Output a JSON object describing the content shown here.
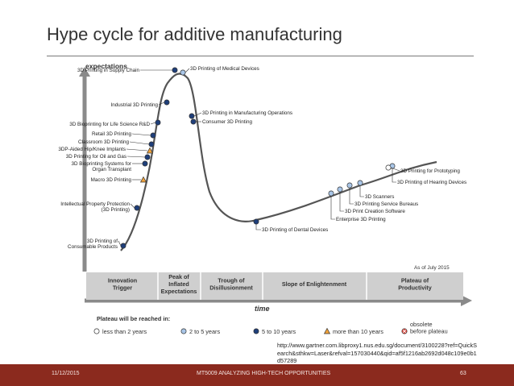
{
  "slide": {
    "title": "Hype cycle for additive manufacturing",
    "source_url": "http://www.gartner.com.libproxy1.nus.edu.sg/document/3100228?ref=QuickSearch&sthkw=Laser&refval=157030440&qid=af5f1216ab2692d048c109e0b1d57289",
    "footer_date": "11/12/2015",
    "footer_course": "MT5009 ANALYZING HIGH-TECH OPPORTUNITIES",
    "page_number": "63",
    "colors": {
      "accent": "#8b2a1e",
      "curve": "#555555",
      "phase_band": "#cfcfcf"
    }
  },
  "hype_cycle": {
    "y_axis_label": "expectations",
    "x_axis_label": "time",
    "as_of": "As of July 2015",
    "phases": [
      {
        "label_lines": [
          "Innovation",
          "Trigger"
        ]
      },
      {
        "label_lines": [
          "Peak of",
          "Inflated",
          "Expectations"
        ]
      },
      {
        "label_lines": [
          "Trough of",
          "Disillusionment"
        ]
      },
      {
        "label_lines": [
          "Slope of Enlightenment"
        ]
      },
      {
        "label_lines": [
          "Plateau of",
          "Productivity"
        ]
      }
    ],
    "technologies": [
      {
        "name": "3D Printing of Medical Devices",
        "plateau": "2-5"
      },
      {
        "name": "3D Printing in Supply Chain",
        "plateau": "5-10"
      },
      {
        "name": "Industrial 3D Printing",
        "plateau": "5-10"
      },
      {
        "name": "3D Bioprinting for Life Science R&D",
        "plateau": "5-10"
      },
      {
        "name": "Retail 3D Printing",
        "plateau": "5-10"
      },
      {
        "name": "Classroom 3D Printing",
        "plateau": "5-10"
      },
      {
        "name": "3DP-Aided Hip/Knee Implants",
        "plateau": ">10"
      },
      {
        "name": "3D Printing for Oil and Gas",
        "plateau": "5-10"
      },
      {
        "name": "3D Bioprinting Systems for Organ Transplant",
        "label_lines": [
          "3D Bioprinting Systems for",
          "Organ Transplant"
        ],
        "plateau": "5-10"
      },
      {
        "name": "Macro 3D Printing",
        "plateau": ">10"
      },
      {
        "name": "Intellectual Property Protection (3D Printing)",
        "label_lines": [
          "Intellectual Property Protection",
          "(3D Printing)"
        ],
        "plateau": "5-10"
      },
      {
        "name": "3D Printing of Consumable Products",
        "label_lines": [
          "3D Printing of",
          "Consumable Products"
        ],
        "plateau": "5-10"
      },
      {
        "name": "3D Printing in Manufacturing Operations",
        "plateau": "5-10"
      },
      {
        "name": "Consumer 3D Printing",
        "plateau": "5-10"
      },
      {
        "name": "3D Printing of Dental Devices",
        "plateau": "5-10"
      },
      {
        "name": "Enterprise 3D Printing",
        "plateau": "2-5"
      },
      {
        "name": "3D Print Creation Software",
        "plateau": "2-5"
      },
      {
        "name": "3D Printing Service Bureaus",
        "plateau": "2-5"
      },
      {
        "name": "3D Scanners",
        "plateau": "2-5"
      },
      {
        "name": "3D Printing of Hearing Devices",
        "plateau": "2-5"
      },
      {
        "name": "3D Printing for Prototyping",
        "plateau": "<2"
      }
    ],
    "legend": {
      "title": "Plateau will be reached in:",
      "items": [
        {
          "key": "<2",
          "label": "less than 2 years",
          "color": "#ffffff"
        },
        {
          "key": "2-5",
          "label": "2 to 5 years",
          "color": "#a9c6e8"
        },
        {
          "key": "5-10",
          "label": "5 to 10 years",
          "color": "#1f3f7a"
        },
        {
          "key": ">10",
          "label": "more than 10 years",
          "color": "#f2a33a"
        },
        {
          "key": "obsolete",
          "label_lines": [
            "obsolete",
            "before plateau"
          ],
          "color": "#e0473e"
        }
      ]
    }
  }
}
